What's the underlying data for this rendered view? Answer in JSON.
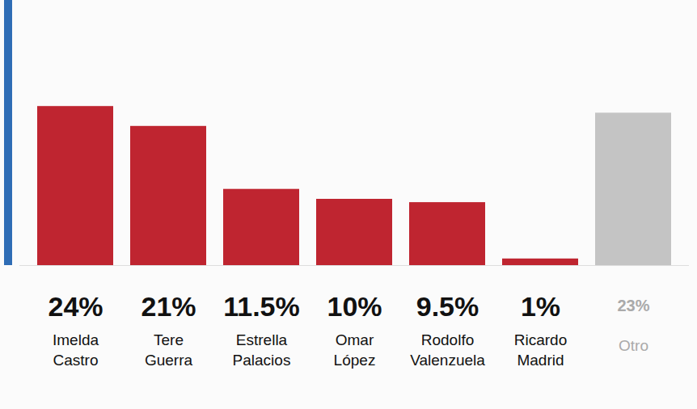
{
  "chart_data": {
    "type": "bar",
    "categories": [
      "Imelda Castro",
      "Tere Guerra",
      "Estrella Palacios",
      "Omar López",
      "Rodolfo Valenzuela",
      "Ricardo Madrid",
      "Otro"
    ],
    "values": [
      24,
      21,
      11.5,
      10,
      9.5,
      1,
      23
    ],
    "value_labels": [
      "24%",
      "21%",
      "11.5%",
      "10%",
      "9.5%",
      "1%",
      "23%"
    ],
    "colors": [
      "#bf2530",
      "#bf2530",
      "#bf2530",
      "#bf2530",
      "#bf2530",
      "#bf2530",
      "#c4c4c4"
    ],
    "ylim": [
      0,
      40
    ],
    "yticks": [],
    "grid": false,
    "data_labels": true,
    "tick_labels": false
  }
}
